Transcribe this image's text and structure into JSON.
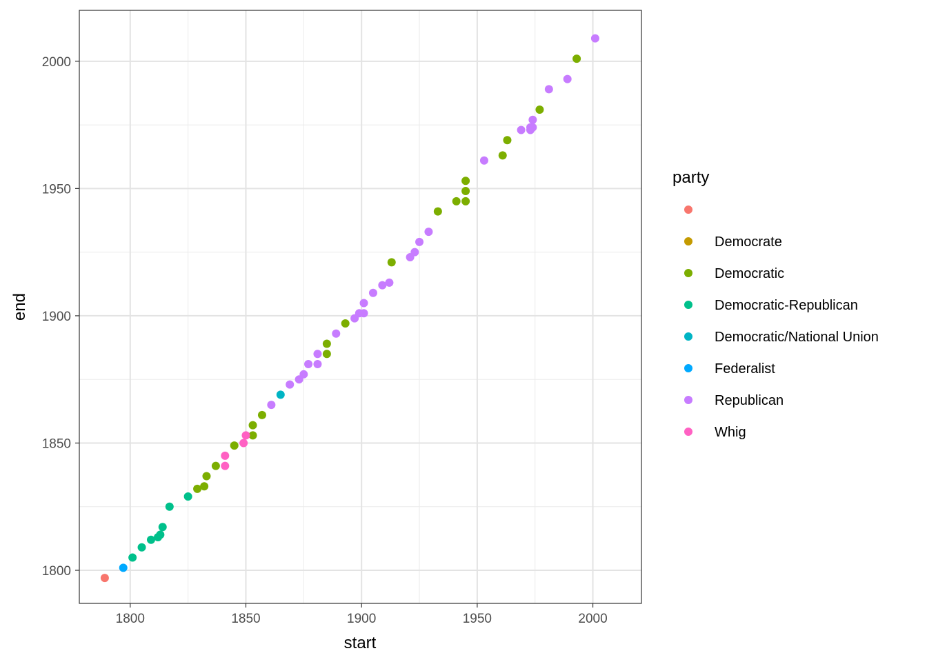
{
  "chart_data": {
    "type": "scatter",
    "xlabel": "start",
    "ylabel": "end",
    "xlim": [
      1778,
      2021
    ],
    "ylim": [
      1787,
      2020
    ],
    "x_ticks": [
      1800,
      1850,
      1900,
      1950,
      2000
    ],
    "y_ticks": [
      1800,
      1850,
      1900,
      1950,
      2000
    ],
    "grid": true,
    "legend": {
      "title": "party",
      "position": "right",
      "entries": [
        {
          "label": "",
          "color": "#F8766D"
        },
        {
          "label": "Democrate",
          "color": "#C49A00"
        },
        {
          "label": "Democratic",
          "color": "#7CAE00"
        },
        {
          "label": "Democratic-Republican",
          "color": "#00C08B"
        },
        {
          "label": "Democratic/National Union",
          "color": "#00B4C4"
        },
        {
          "label": "Federalist",
          "color": "#00A9FF"
        },
        {
          "label": "Republican",
          "color": "#C77CFF"
        },
        {
          "label": "Whig",
          "color": "#FF61C3"
        }
      ]
    },
    "series": [
      {
        "party": "",
        "color": "#F8766D",
        "points": [
          [
            1789,
            1797
          ]
        ]
      },
      {
        "party": "Federalist",
        "color": "#00A9FF",
        "points": [
          [
            1797,
            1801
          ]
        ]
      },
      {
        "party": "Democratic-Republican",
        "color": "#00C08B",
        "points": [
          [
            1801,
            1805
          ],
          [
            1805,
            1809
          ],
          [
            1809,
            1812
          ],
          [
            1812,
            1813
          ],
          [
            1813,
            1814
          ],
          [
            1814,
            1817
          ],
          [
            1817,
            1825
          ],
          [
            1825,
            1829
          ]
        ]
      },
      {
        "party": "Democratic",
        "color": "#7CAE00",
        "points": [
          [
            1829,
            1832
          ],
          [
            1832,
            1833
          ],
          [
            1833,
            1837
          ],
          [
            1837,
            1841
          ],
          [
            1845,
            1849
          ],
          [
            1853,
            1853
          ],
          [
            1853,
            1857
          ],
          [
            1857,
            1861
          ],
          [
            1885,
            1885
          ],
          [
            1885,
            1889
          ],
          [
            1893,
            1897
          ],
          [
            1913,
            1921
          ],
          [
            1933,
            1941
          ],
          [
            1941,
            1945
          ],
          [
            1945,
            1945
          ],
          [
            1945,
            1949
          ],
          [
            1945,
            1953
          ],
          [
            1961,
            1963
          ],
          [
            1963,
            1969
          ],
          [
            1977,
            1981
          ],
          [
            1993,
            2001
          ]
        ]
      },
      {
        "party": "Whig",
        "color": "#FF61C3",
        "points": [
          [
            1841,
            1841
          ],
          [
            1841,
            1845
          ],
          [
            1849,
            1850
          ],
          [
            1850,
            1853
          ]
        ]
      },
      {
        "party": "Democratic/National Union",
        "color": "#00B4C4",
        "points": [
          [
            1865,
            1869
          ]
        ]
      },
      {
        "party": "Republican",
        "color": "#C77CFF",
        "points": [
          [
            1861,
            1865
          ],
          [
            1869,
            1873
          ],
          [
            1873,
            1875
          ],
          [
            1875,
            1877
          ],
          [
            1877,
            1881
          ],
          [
            1881,
            1881
          ],
          [
            1881,
            1885
          ],
          [
            1889,
            1893
          ],
          [
            1897,
            1899
          ],
          [
            1899,
            1901
          ],
          [
            1901,
            1901
          ],
          [
            1901,
            1905
          ],
          [
            1905,
            1909
          ],
          [
            1909,
            1912
          ],
          [
            1912,
            1913
          ],
          [
            1921,
            1923
          ],
          [
            1923,
            1925
          ],
          [
            1925,
            1929
          ],
          [
            1929,
            1933
          ],
          [
            1953,
            1961
          ],
          [
            1969,
            1973
          ],
          [
            1973,
            1973
          ],
          [
            1973,
            1974
          ],
          [
            1974,
            1974
          ],
          [
            1974,
            1977
          ],
          [
            1981,
            1989
          ],
          [
            1989,
            1993
          ],
          [
            2001,
            2009
          ]
        ]
      }
    ]
  }
}
